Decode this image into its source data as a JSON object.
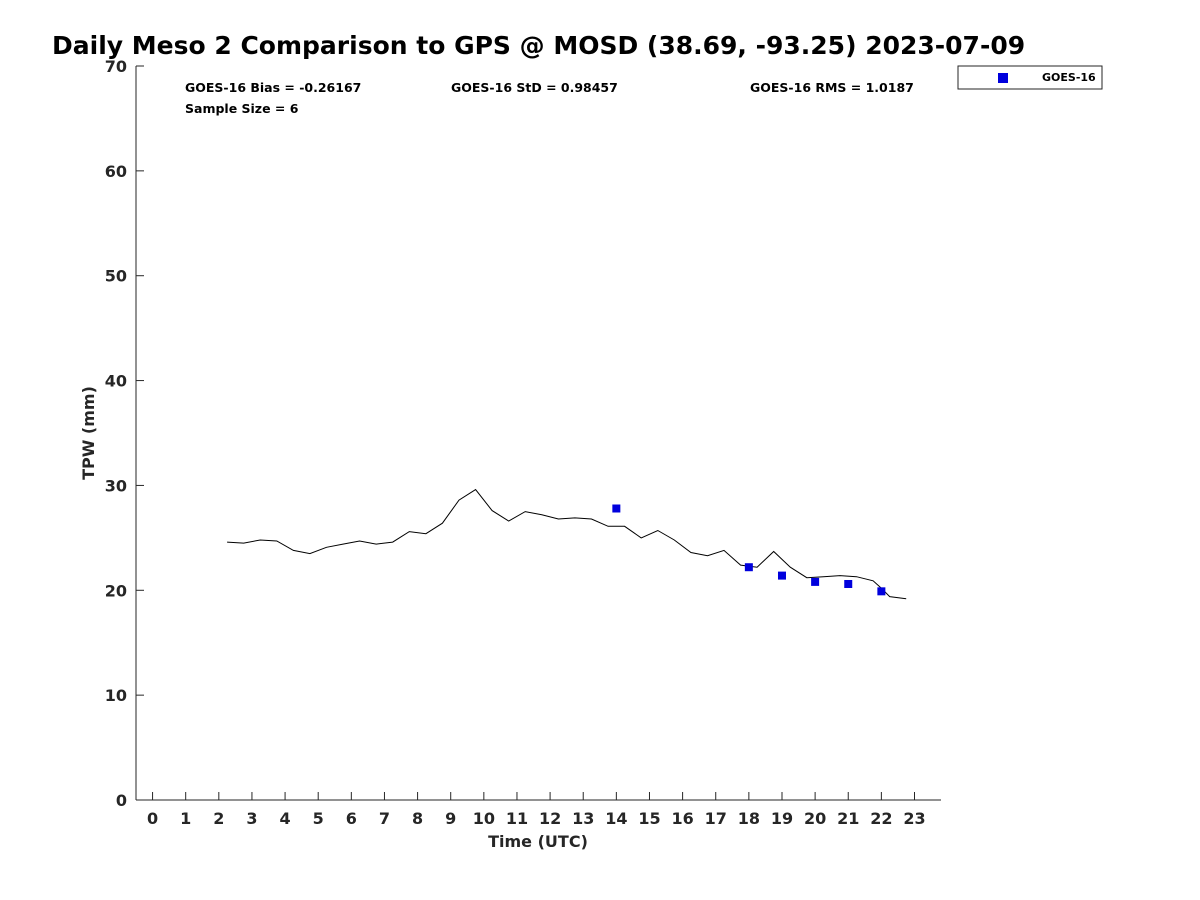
{
  "chart_data": {
    "type": "line",
    "title": "Daily Meso 2 Comparison to GPS @ MOSD (38.69, -93.25) 2023-07-09",
    "xlabel": "Time (UTC)",
    "ylabel": "TPW (mm)",
    "xlim": [
      -0.5,
      23.8
    ],
    "ylim": [
      0,
      70
    ],
    "xticks": [
      0,
      1,
      2,
      3,
      4,
      5,
      6,
      7,
      8,
      9,
      10,
      11,
      12,
      13,
      14,
      15,
      16,
      17,
      18,
      19,
      20,
      21,
      22,
      23
    ],
    "yticks": [
      0,
      10,
      20,
      30,
      40,
      50,
      60,
      70
    ],
    "grid": false,
    "legend_position": "top-right (outside plot)",
    "stats": {
      "bias": "GOES-16 Bias = -0.26167",
      "std": "GOES-16 StD = 0.98457",
      "rms": "GOES-16 RMS = 1.0187",
      "sample_size": "Sample Size = 6"
    },
    "series": [
      {
        "kind": "line",
        "color": "#000000",
        "x": [
          2.25,
          2.75,
          3.25,
          3.75,
          4.25,
          4.75,
          5.25,
          5.75,
          6.25,
          6.75,
          7.25,
          7.75,
          8.25,
          8.75,
          9.25,
          9.75,
          10.25,
          10.75,
          11.25,
          11.75,
          12.25,
          12.75,
          13.25,
          13.75,
          14.25,
          14.75,
          15.25,
          15.75,
          16.25,
          16.75,
          17.25,
          17.75,
          18.25,
          18.75,
          19.25,
          19.75,
          20.25,
          20.75,
          21.25,
          21.75,
          22.0,
          22.25,
          22.75
        ],
        "y": [
          24.6,
          24.5,
          24.8,
          24.7,
          23.8,
          23.5,
          24.1,
          24.4,
          24.7,
          24.4,
          24.6,
          25.6,
          25.4,
          26.4,
          28.6,
          29.6,
          27.6,
          26.6,
          27.5,
          27.2,
          26.8,
          26.9,
          26.8,
          26.1,
          26.1,
          25.0,
          25.7,
          24.8,
          23.6,
          23.3,
          23.8,
          22.4,
          22.2,
          23.7,
          22.2,
          21.2,
          21.3,
          21.4,
          21.3,
          20.9,
          20.2,
          19.4,
          19.2
        ]
      },
      {
        "name": "GOES-16",
        "kind": "scatter",
        "marker": "square",
        "color": "#0000dd",
        "x": [
          14,
          18,
          19,
          20,
          21,
          22
        ],
        "y": [
          27.8,
          22.2,
          21.4,
          20.8,
          20.6,
          19.9
        ]
      }
    ]
  }
}
